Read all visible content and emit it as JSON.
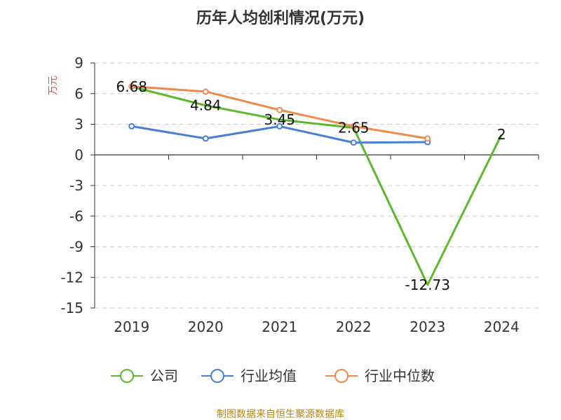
{
  "chart_data": {
    "type": "line",
    "title": "历年人均创利情况(万元)",
    "ylabel": "万元",
    "categories": [
      "2019",
      "2020",
      "2021",
      "2022",
      "2023",
      "2024"
    ],
    "ylim": [
      -15,
      9
    ],
    "yticks": [
      9,
      6,
      3,
      0,
      -3,
      -6,
      -9,
      -12,
      -15
    ],
    "grid": true,
    "legend_position": "bottom",
    "series": [
      {
        "name": "公司",
        "color": "#5cb82c",
        "values": [
          6.68,
          4.84,
          3.45,
          2.65,
          -12.73,
          2
        ],
        "labels": [
          "6.68",
          "4.84",
          "3.45",
          "2.65",
          "-12.73",
          "2"
        ],
        "markers": false
      },
      {
        "name": "行业均值",
        "color": "#4a7fd8",
        "values": [
          2.8,
          1.6,
          2.8,
          1.2,
          1.25,
          null
        ],
        "markers": true
      },
      {
        "name": "行业中位数",
        "color": "#f08a4b",
        "values": [
          6.7,
          6.2,
          4.4,
          2.8,
          1.6,
          null
        ],
        "markers": true
      }
    ]
  },
  "source": "制图数据来自恒生聚源数据库",
  "colors": {
    "ylabel": "#e05050",
    "source": "#b8860b",
    "axis": "#333333",
    "grid": "#cccccc"
  }
}
